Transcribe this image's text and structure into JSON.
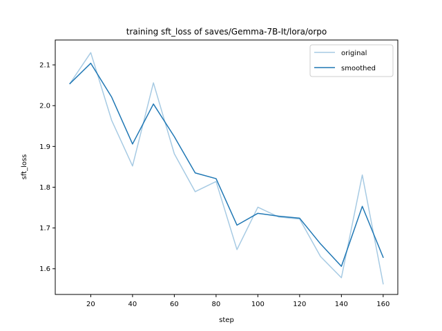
{
  "chart_data": {
    "type": "line",
    "title": "training sft_loss of saves/Gemma-7B-It/lora/orpo",
    "xlabel": "step",
    "ylabel": "sft_loss",
    "xlim": [
      3,
      167
    ],
    "ylim": [
      1.537,
      2.161
    ],
    "xticks": [
      20,
      40,
      60,
      80,
      100,
      120,
      140,
      160
    ],
    "yticks": [
      1.6,
      1.7,
      1.8,
      1.9,
      2.0,
      2.1
    ],
    "xtick_labels": [
      "20",
      "40",
      "60",
      "80",
      "100",
      "120",
      "140",
      "160"
    ],
    "ytick_labels": [
      "1.6",
      "1.7",
      "1.8",
      "1.9",
      "2.0",
      "2.1"
    ],
    "grid": false,
    "legend_position": "top-right",
    "x": [
      10,
      20,
      30,
      40,
      50,
      60,
      70,
      80,
      90,
      100,
      110,
      120,
      130,
      140,
      150,
      160
    ],
    "series": [
      {
        "name": "original",
        "color": "#a6cae3",
        "values": [
          2.054,
          2.13,
          1.964,
          1.852,
          2.056,
          1.882,
          1.789,
          1.814,
          1.647,
          1.751,
          1.727,
          1.722,
          1.63,
          1.578,
          1.83,
          1.563
        ]
      },
      {
        "name": "smoothed",
        "color": "#1f77b4",
        "values": [
          2.054,
          2.104,
          2.021,
          1.906,
          2.004,
          1.924,
          1.835,
          1.821,
          1.707,
          1.736,
          1.729,
          1.724,
          1.661,
          1.606,
          1.753,
          1.628
        ]
      }
    ]
  }
}
